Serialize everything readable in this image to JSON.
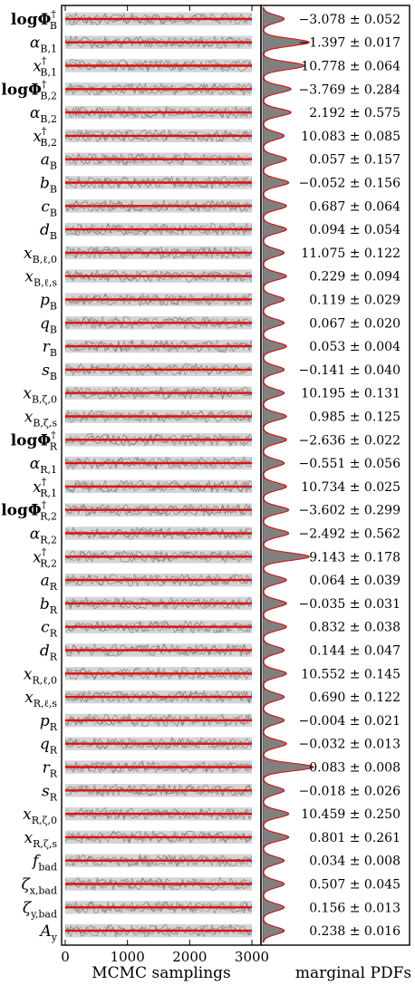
{
  "chart_data": {
    "type": "line",
    "xlabel": "MCMC samplings",
    "pdf_label": "marginal PDFs",
    "xlim": [
      0,
      3200
    ],
    "xticks": [
      "0",
      "1000",
      "2000",
      "3000"
    ],
    "xtick_values": [
      0,
      1000,
      2000,
      3000
    ],
    "colors": {
      "trace": "#888888",
      "median": "#e01010",
      "pdf_fill": "#808080",
      "pdf_fit": "#e01010"
    },
    "parameters": [
      {
        "main": "logΦ",
        "sup": "†",
        "sub": "B",
        "value": "−3.078 ± 0.052",
        "peak": 0.3
      },
      {
        "main": "α",
        "sup": "",
        "sub": "B,1",
        "value": "−1.397 ± 0.017",
        "peak": 0.85
      },
      {
        "main": "x",
        "sup": "†",
        "sub": "B,1",
        "value": "10.778 ± 0.064",
        "peak": 0.75
      },
      {
        "main": "logΦ",
        "sup": "†",
        "sub": "B,2",
        "value": "−3.769 ± 0.284",
        "peak": 0.45
      },
      {
        "main": "α",
        "sup": "",
        "sub": "B,2",
        "value": "2.192 ± 0.575",
        "peak": 0.45
      },
      {
        "main": "x",
        "sup": "†",
        "sub": "B,2",
        "value": "10.083 ± 0.085",
        "peak": 0.3
      },
      {
        "main": "a",
        "sup": "",
        "sub": "B",
        "value": "0.057 ± 0.157",
        "peak": 0.35
      },
      {
        "main": "b",
        "sup": "",
        "sub": "B",
        "value": "−0.052 ± 0.156",
        "peak": 0.4
      },
      {
        "main": "c",
        "sup": "",
        "sub": "B",
        "value": "0.687 ± 0.064",
        "peak": 0.35
      },
      {
        "main": "d",
        "sup": "",
        "sub": "B",
        "value": "0.094 ± 0.054",
        "peak": 0.35
      },
      {
        "main": "x",
        "sup": "",
        "sub": "B,ℓ,0",
        "value": "11.075 ± 0.122",
        "peak": 0.3
      },
      {
        "main": "x",
        "sup": "",
        "sub": "B,ℓ,s",
        "value": "0.229 ± 0.094",
        "peak": 0.35
      },
      {
        "main": "p",
        "sup": "",
        "sub": "B",
        "value": "0.119 ± 0.029",
        "peak": 0.3
      },
      {
        "main": "q",
        "sup": "",
        "sub": "B",
        "value": "0.067 ± 0.020",
        "peak": 0.3
      },
      {
        "main": "r",
        "sup": "",
        "sub": "B",
        "value": "0.053 ± 0.004",
        "peak": 0.35
      },
      {
        "main": "s",
        "sup": "",
        "sub": "B",
        "value": "−0.141 ± 0.040",
        "peak": 0.3
      },
      {
        "main": "x",
        "sup": "",
        "sub": "B,ζ,0",
        "value": "10.195 ± 0.131",
        "peak": 0.3
      },
      {
        "main": "x",
        "sup": "",
        "sub": "B,ζ,s",
        "value": "0.985 ± 0.125",
        "peak": 0.35
      },
      {
        "main": "logΦ",
        "sup": "†",
        "sub": "R",
        "value": "−2.636 ± 0.022",
        "peak": 0.35
      },
      {
        "main": "α",
        "sup": "",
        "sub": "R,1",
        "value": "−0.551 ± 0.056",
        "peak": 0.3
      },
      {
        "main": "x",
        "sup": "†",
        "sub": "R,1",
        "value": "10.734 ± 0.025",
        "peak": 0.35
      },
      {
        "main": "logΦ",
        "sup": "†",
        "sub": "R,2",
        "value": "−3.602 ± 0.299",
        "peak": 0.4
      },
      {
        "main": "α",
        "sup": "",
        "sub": "R,2",
        "value": "−2.492 ± 0.562",
        "peak": 0.4
      },
      {
        "main": "x",
        "sup": "†",
        "sub": "R,2",
        "value": "9.143 ± 0.178",
        "peak": 0.85
      },
      {
        "main": "a",
        "sup": "",
        "sub": "R",
        "value": "0.064 ± 0.039",
        "peak": 0.35
      },
      {
        "main": "b",
        "sup": "",
        "sub": "R",
        "value": "−0.035 ± 0.031",
        "peak": 0.35
      },
      {
        "main": "c",
        "sup": "",
        "sub": "R",
        "value": "0.832 ± 0.038",
        "peak": 0.35
      },
      {
        "main": "d",
        "sup": "",
        "sub": "R",
        "value": "0.144 ± 0.047",
        "peak": 0.3
      },
      {
        "main": "x",
        "sup": "",
        "sub": "R,ℓ,0",
        "value": "10.552 ± 0.145",
        "peak": 0.35
      },
      {
        "main": "x",
        "sup": "",
        "sub": "R,ℓ,s",
        "value": "0.690 ± 0.122",
        "peak": 0.3
      },
      {
        "main": "p",
        "sup": "",
        "sub": "R",
        "value": "−0.004 ± 0.021",
        "peak": 0.3
      },
      {
        "main": "q",
        "sup": "",
        "sub": "R",
        "value": "−0.032 ± 0.013",
        "peak": 0.35
      },
      {
        "main": "r",
        "sup": "",
        "sub": "R",
        "value": "0.083 ± 0.008",
        "peak": 0.95
      },
      {
        "main": "s",
        "sup": "",
        "sub": "R",
        "value": "−0.018 ± 0.026",
        "peak": 0.3
      },
      {
        "main": "x",
        "sup": "",
        "sub": "R,ζ,0",
        "value": "10.459 ± 0.250",
        "peak": 0.4
      },
      {
        "main": "x",
        "sup": "",
        "sub": "R,ζ,s",
        "value": "0.801 ± 0.261",
        "peak": 0.4
      },
      {
        "main": "f",
        "sup": "",
        "sub": "bad",
        "value": "0.034 ± 0.008",
        "peak": 0.3
      },
      {
        "main": "ζ",
        "sup": "",
        "sub": "x,bad",
        "value": "0.507 ± 0.045",
        "peak": 0.3
      },
      {
        "main": "ζ",
        "sup": "",
        "sub": "y,bad",
        "value": "0.156 ± 0.013",
        "peak": 0.3
      },
      {
        "main": "A",
        "sup": "",
        "sub": "y",
        "value": "0.238 ± 0.016",
        "peak": 0.3
      }
    ]
  }
}
